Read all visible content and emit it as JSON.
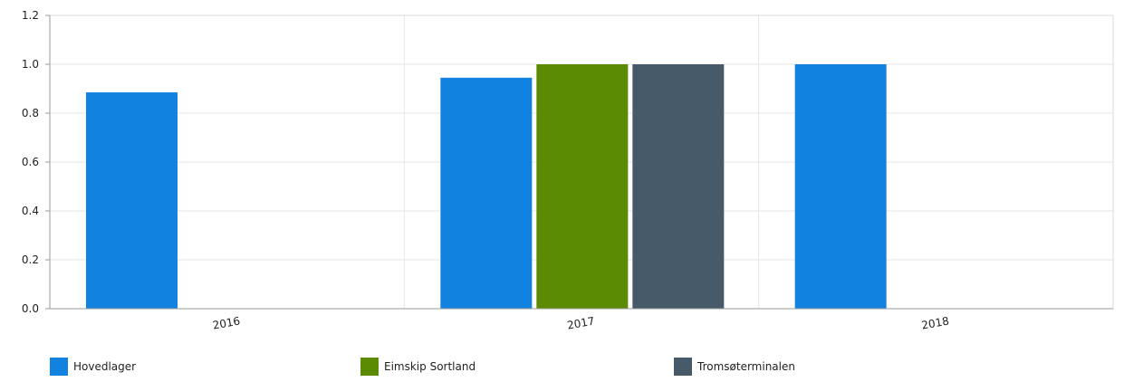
{
  "chart_data": {
    "type": "bar",
    "categories": [
      "2016",
      "2017",
      "2018"
    ],
    "series": [
      {
        "name": "Hovedlager",
        "color": "#1182e0",
        "values": [
          0.885,
          0.945,
          1.0
        ]
      },
      {
        "name": "Eimskip Sortland",
        "color": "#5b8a03",
        "values": [
          null,
          1.0,
          null
        ]
      },
      {
        "name": "Tromsøterminalen",
        "color": "#465a69",
        "values": [
          null,
          1.0,
          null
        ]
      }
    ],
    "yticks": [
      "0.0",
      "0.2",
      "0.4",
      "0.6",
      "0.8",
      "1.0",
      "1.2"
    ],
    "ylim": [
      0,
      1.2
    ],
    "grid": true,
    "legend_position": "bottom"
  }
}
